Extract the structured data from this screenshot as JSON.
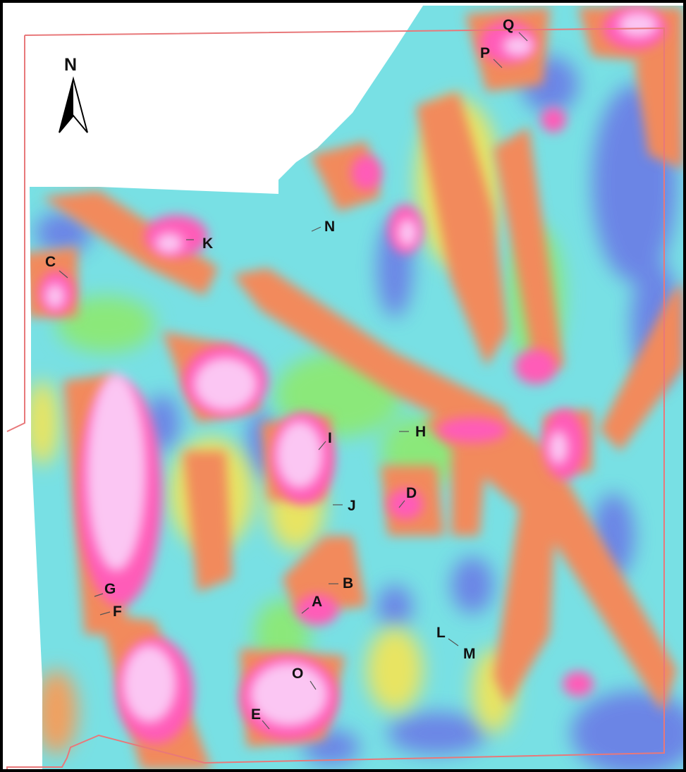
{
  "map": {
    "north_arrow": {
      "letter": "N"
    },
    "labels": [
      {
        "id": "q",
        "text": "Q"
      },
      {
        "id": "p",
        "text": "P"
      },
      {
        "id": "n",
        "text": "N"
      },
      {
        "id": "k",
        "text": "K"
      },
      {
        "id": "c",
        "text": "C"
      },
      {
        "id": "i",
        "text": "I"
      },
      {
        "id": "h",
        "text": "H"
      },
      {
        "id": "j",
        "text": "J"
      },
      {
        "id": "d",
        "text": "D"
      },
      {
        "id": "b",
        "text": "B"
      },
      {
        "id": "a",
        "text": "A"
      },
      {
        "id": "g",
        "text": "G"
      },
      {
        "id": "f",
        "text": "F"
      },
      {
        "id": "l",
        "text": "L"
      },
      {
        "id": "m",
        "text": "M"
      },
      {
        "id": "o",
        "text": "O"
      },
      {
        "id": "e",
        "text": "E"
      }
    ],
    "colors": {
      "frame": "#000000",
      "boundary": "#e8787a",
      "low": "#6b7be6",
      "mid_low": "#6fe6e6",
      "mid": "#88e878",
      "mid_high": "#f0e860",
      "high": "#f28a5c",
      "very_high": "#ff5cb8",
      "peak": "#fbc6f3"
    }
  }
}
